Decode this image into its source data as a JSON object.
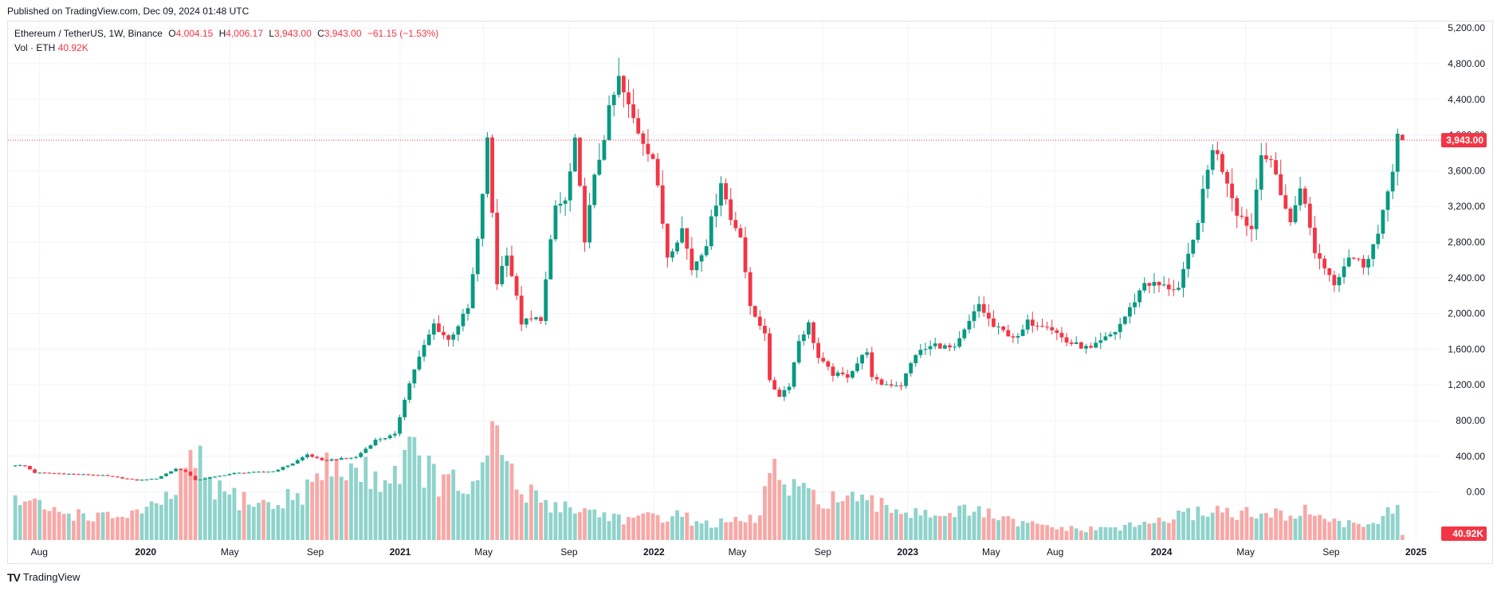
{
  "header": {
    "published": "Published on TradingView.com, Dec 09, 2024 01:48 UTC"
  },
  "legend": {
    "symbol": "Ethereum / TetherUS, 1W, Binance",
    "o_label": "O",
    "o_value": "4,004.15",
    "h_label": "H",
    "h_value": "4,006.17",
    "l_label": "L",
    "l_value": "3,943.00",
    "c_label": "C",
    "c_value": "3,943.00",
    "change": "−61.15 (−1.53%)",
    "vol_label": "Vol · ETH",
    "vol_value": "40.92K"
  },
  "footer": {
    "logo_text": "TradingView"
  },
  "colors": {
    "up": "#089981",
    "down": "#f23645",
    "vol_up": "#8fd3cb",
    "vol_down": "#f7a9a7",
    "grid": "#f0f3fa",
    "text": "#131722"
  },
  "chart_data": {
    "type": "candlestick",
    "symbol": "ETH/USDT",
    "interval": "1W",
    "ylim": [
      -800,
      5600
    ],
    "yticks": [
      5200,
      4800,
      4400,
      4000,
      3600,
      3200,
      2800,
      2400,
      2000,
      1600,
      1200,
      800,
      400,
      0
    ],
    "ytick_labels": [
      "5,200.00",
      "4,800.00",
      "4,400.00",
      "4,000.00",
      "3,600.00",
      "3,200.00",
      "2,800.00",
      "2,400.00",
      "2,000.00",
      "1,600.00",
      "1,200.00",
      "800.00",
      "400.00",
      "0.00"
    ],
    "last_price": 3943,
    "last_price_label": "3,943.00",
    "volume_label": "40.92K",
    "x_ticks": [
      {
        "label": "Aug",
        "date": "2019-08-01",
        "bold": false
      },
      {
        "label": "2020",
        "date": "2020-01-01",
        "bold": true
      },
      {
        "label": "May",
        "date": "2020-05-01",
        "bold": false
      },
      {
        "label": "Sep",
        "date": "2020-09-01",
        "bold": false
      },
      {
        "label": "2021",
        "date": "2021-01-01",
        "bold": true
      },
      {
        "label": "May",
        "date": "2021-05-01",
        "bold": false
      },
      {
        "label": "Sep",
        "date": "2021-09-01",
        "bold": false
      },
      {
        "label": "2022",
        "date": "2022-01-01",
        "bold": true
      },
      {
        "label": "May",
        "date": "2022-05-01",
        "bold": false
      },
      {
        "label": "Sep",
        "date": "2022-09-01",
        "bold": false
      },
      {
        "label": "2023",
        "date": "2023-01-01",
        "bold": true
      },
      {
        "label": "May",
        "date": "2023-05-01",
        "bold": false
      },
      {
        "label": "Aug",
        "date": "2023-08-01",
        "bold": false
      },
      {
        "label": "2024",
        "date": "2024-01-01",
        "bold": true
      },
      {
        "label": "May",
        "date": "2024-05-01",
        "bold": false
      },
      {
        "label": "Sep",
        "date": "2024-09-01",
        "bold": false
      },
      {
        "label": "2025",
        "date": "2025-01-01",
        "bold": true
      }
    ],
    "close_keyframes": [
      [
        "2019-06-24",
        300
      ],
      [
        "2019-07-08",
        290
      ],
      [
        "2019-07-22",
        215
      ],
      [
        "2019-08-12",
        210
      ],
      [
        "2019-09-16",
        200
      ],
      [
        "2019-10-28",
        185
      ],
      [
        "2019-12-16",
        130
      ],
      [
        "2020-01-13",
        150
      ],
      [
        "2020-02-10",
        260
      ],
      [
        "2020-02-24",
        230
      ],
      [
        "2020-03-09",
        130
      ],
      [
        "2020-04-06",
        170
      ],
      [
        "2020-05-04",
        210
      ],
      [
        "2020-06-29",
        230
      ],
      [
        "2020-07-27",
        320
      ],
      [
        "2020-08-17",
        420
      ],
      [
        "2020-09-07",
        350
      ],
      [
        "2020-10-26",
        390
      ],
      [
        "2020-11-23",
        580
      ],
      [
        "2020-12-21",
        640
      ],
      [
        "2021-01-04",
        1050
      ],
      [
        "2021-01-18",
        1380
      ],
      [
        "2021-02-15",
        1880
      ],
      [
        "2021-03-08",
        1700
      ],
      [
        "2021-04-05",
        2050
      ],
      [
        "2021-04-19",
        2800
      ],
      [
        "2021-05-03",
        3920
      ],
      [
        "2021-05-17",
        2350
      ],
      [
        "2021-05-31",
        2700
      ],
      [
        "2021-06-21",
        1900
      ],
      [
        "2021-07-19",
        1950
      ],
      [
        "2021-08-09",
        3200
      ],
      [
        "2021-08-23",
        3250
      ],
      [
        "2021-09-06",
        3900
      ],
      [
        "2021-09-20",
        2850
      ],
      [
        "2021-10-04",
        3500
      ],
      [
        "2021-10-25",
        4250
      ],
      [
        "2021-11-08",
        4620
      ],
      [
        "2021-11-22",
        4300
      ],
      [
        "2021-12-06",
        4050
      ],
      [
        "2021-12-27",
        3750
      ],
      [
        "2022-01-17",
        2650
      ],
      [
        "2022-02-07",
        2950
      ],
      [
        "2022-02-21",
        2500
      ],
      [
        "2022-03-14",
        2800
      ],
      [
        "2022-04-04",
        3500
      ],
      [
        "2022-04-18",
        3050
      ],
      [
        "2022-05-02",
        2900
      ],
      [
        "2022-05-16",
        2050
      ],
      [
        "2022-06-06",
        1800
      ],
      [
        "2022-06-13",
        1230
      ],
      [
        "2022-06-27",
        1080
      ],
      [
        "2022-07-11",
        1200
      ],
      [
        "2022-07-25",
        1700
      ],
      [
        "2022-08-08",
        1880
      ],
      [
        "2022-08-22",
        1500
      ],
      [
        "2022-09-12",
        1320
      ],
      [
        "2022-10-03",
        1300
      ],
      [
        "2022-10-31",
        1590
      ],
      [
        "2022-11-07",
        1270
      ],
      [
        "2022-11-21",
        1210
      ],
      [
        "2022-12-19",
        1200
      ],
      [
        "2023-01-09",
        1550
      ],
      [
        "2023-02-06",
        1650
      ],
      [
        "2023-03-06",
        1600
      ],
      [
        "2023-03-20",
        1800
      ],
      [
        "2023-04-10",
        2100
      ],
      [
        "2023-05-01",
        1850
      ],
      [
        "2023-06-05",
        1720
      ],
      [
        "2023-06-19",
        1900
      ],
      [
        "2023-07-17",
        1880
      ],
      [
        "2023-08-14",
        1680
      ],
      [
        "2023-09-18",
        1600
      ],
      [
        "2023-10-23",
        1800
      ],
      [
        "2023-11-13",
        2050
      ],
      [
        "2023-12-04",
        2350
      ],
      [
        "2024-01-01",
        2300
      ],
      [
        "2024-01-22",
        2280
      ],
      [
        "2024-02-12",
        2800
      ],
      [
        "2024-03-04",
        3600
      ],
      [
        "2024-03-11",
        3880
      ],
      [
        "2024-04-01",
        3500
      ],
      [
        "2024-04-15",
        3150
      ],
      [
        "2024-05-06",
        2950
      ],
      [
        "2024-05-20",
        3850
      ],
      [
        "2024-06-10",
        3550
      ],
      [
        "2024-07-01",
        3000
      ],
      [
        "2024-07-15",
        3450
      ],
      [
        "2024-08-05",
        2700
      ],
      [
        "2024-09-02",
        2350
      ],
      [
        "2024-09-23",
        2650
      ],
      [
        "2024-10-14",
        2550
      ],
      [
        "2024-11-04",
        2880
      ],
      [
        "2024-11-11",
        3100
      ],
      [
        "2024-11-25",
        3650
      ],
      [
        "2024-12-02",
        4004
      ],
      [
        "2024-12-09",
        3943
      ]
    ],
    "volume_keyframes_k": [
      [
        "2019-06-24",
        330
      ],
      [
        "2019-08-12",
        240
      ],
      [
        "2019-11-04",
        180
      ],
      [
        "2020-01-20",
        260
      ],
      [
        "2020-03-09",
        640
      ],
      [
        "2020-04-13",
        380
      ],
      [
        "2020-06-29",
        270
      ],
      [
        "2020-08-17",
        420
      ],
      [
        "2020-09-21",
        600
      ],
      [
        "2020-12-14",
        500
      ],
      [
        "2021-01-11",
        720
      ],
      [
        "2021-02-22",
        470
      ],
      [
        "2021-04-19",
        410
      ],
      [
        "2021-05-17",
        880
      ],
      [
        "2021-06-14",
        400
      ],
      [
        "2021-08-09",
        290
      ],
      [
        "2021-09-20",
        240
      ],
      [
        "2021-11-29",
        160
      ],
      [
        "2022-01-24",
        210
      ],
      [
        "2022-03-14",
        130
      ],
      [
        "2022-05-09",
        150
      ],
      [
        "2022-05-30",
        190
      ],
      [
        "2022-06-13",
        600
      ],
      [
        "2022-07-04",
        420
      ],
      [
        "2022-08-01",
        360
      ],
      [
        "2022-09-12",
        340
      ],
      [
        "2022-11-07",
        280
      ],
      [
        "2023-01-09",
        230
      ],
      [
        "2023-04-17",
        220
      ],
      [
        "2023-05-29",
        140
      ],
      [
        "2023-09-04",
        80
      ],
      [
        "2023-11-13",
        110
      ],
      [
        "2024-01-08",
        170
      ],
      [
        "2024-03-11",
        250
      ],
      [
        "2024-05-20",
        190
      ],
      [
        "2024-08-05",
        230
      ],
      [
        "2024-09-16",
        120
      ],
      [
        "2024-11-04",
        150
      ],
      [
        "2024-11-18",
        250
      ],
      [
        "2024-12-02",
        220
      ],
      [
        "2024-12-09",
        41
      ]
    ]
  }
}
